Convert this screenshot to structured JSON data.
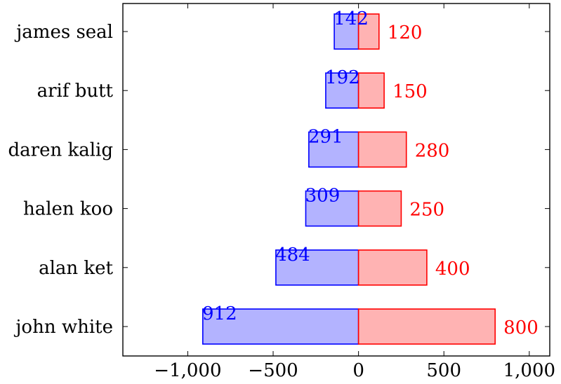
{
  "chart_data": {
    "type": "bar",
    "orientation": "horizontal",
    "stacked": false,
    "title": "",
    "xlabel": "",
    "ylabel": "",
    "xlim": [
      -1380,
      1120
    ],
    "xticks": [
      -1000,
      -500,
      0,
      500,
      1000
    ],
    "xtick_labels": [
      "−1,000",
      "−500",
      "0",
      "500",
      "1,000"
    ],
    "grid": false,
    "categories": [
      "james seal",
      "arif butt",
      "daren kalig",
      "halen koo",
      "alan ket",
      "john white"
    ],
    "series": [
      {
        "color": "#0000ff",
        "fill": "#b3b3ff",
        "values": [
          -142,
          -192,
          -291,
          -309,
          -484,
          -912
        ],
        "labels": [
          "142",
          "192",
          "291",
          "309",
          "484",
          "912"
        ]
      },
      {
        "color": "#ff0000",
        "fill": "#ffb3b3",
        "values": [
          120,
          150,
          280,
          250,
          400,
          800
        ],
        "labels": [
          "120",
          "150",
          "280",
          "250",
          "400",
          "800"
        ]
      }
    ]
  }
}
